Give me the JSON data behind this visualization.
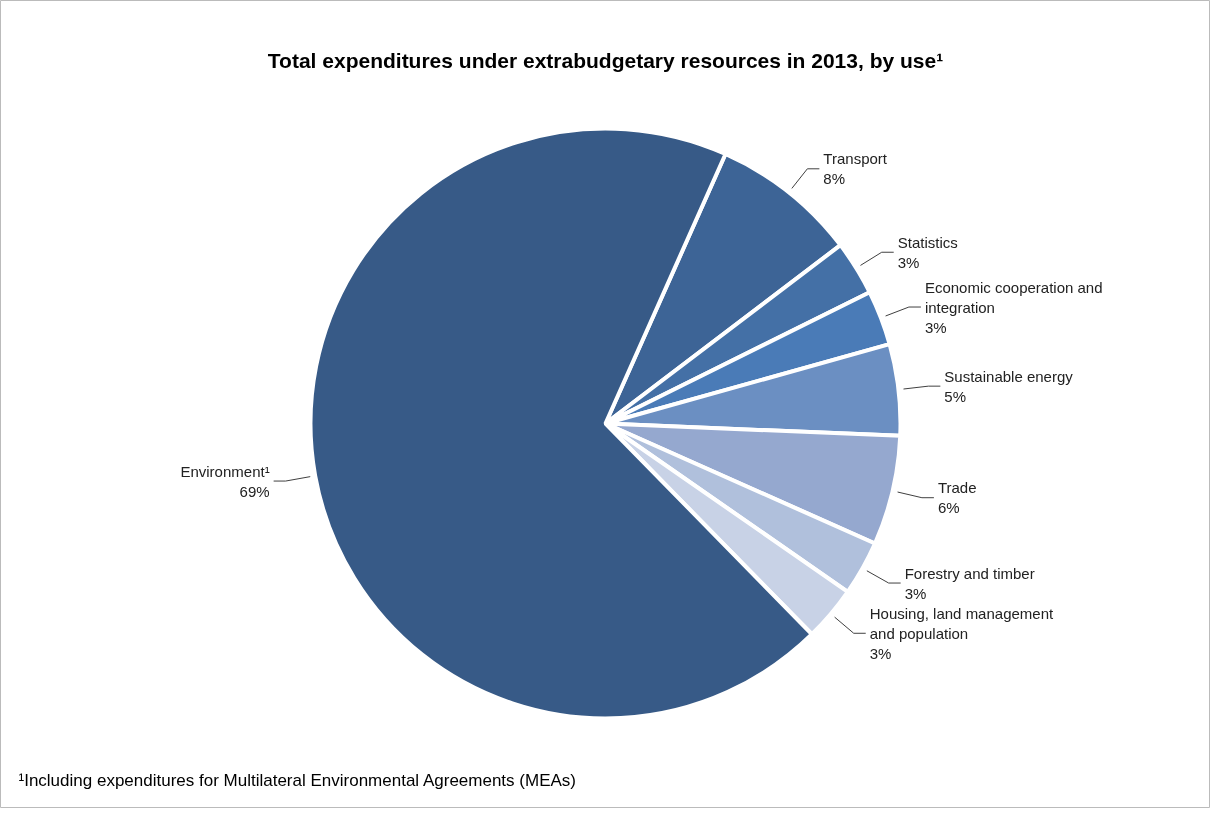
{
  "chart_data": {
    "type": "pie",
    "title": "Total expenditures under extrabudgetary resources in 2013, by use¹",
    "categories": [
      "Transport",
      "Statistics",
      "Economic cooperation and integration",
      "Sustainable energy",
      "Trade",
      "Forestry and timber",
      "Housing, land management and population",
      "Environment¹"
    ],
    "values": [
      8,
      3,
      3,
      5,
      6,
      3,
      3,
      69
    ],
    "value_labels": [
      "8%",
      "3%",
      "3%",
      "5%",
      "6%",
      "3%",
      "3%",
      "69%"
    ],
    "colors": [
      "#3d6496",
      "#4470a6",
      "#4a7bb7",
      "#6b8fc2",
      "#95a8cf",
      "#b0c0dc",
      "#c8d2e6",
      "#375a87"
    ],
    "annotations": [
      "¹Including expenditures for Multilateral Environmental Agreements  (MEAs)"
    ]
  }
}
